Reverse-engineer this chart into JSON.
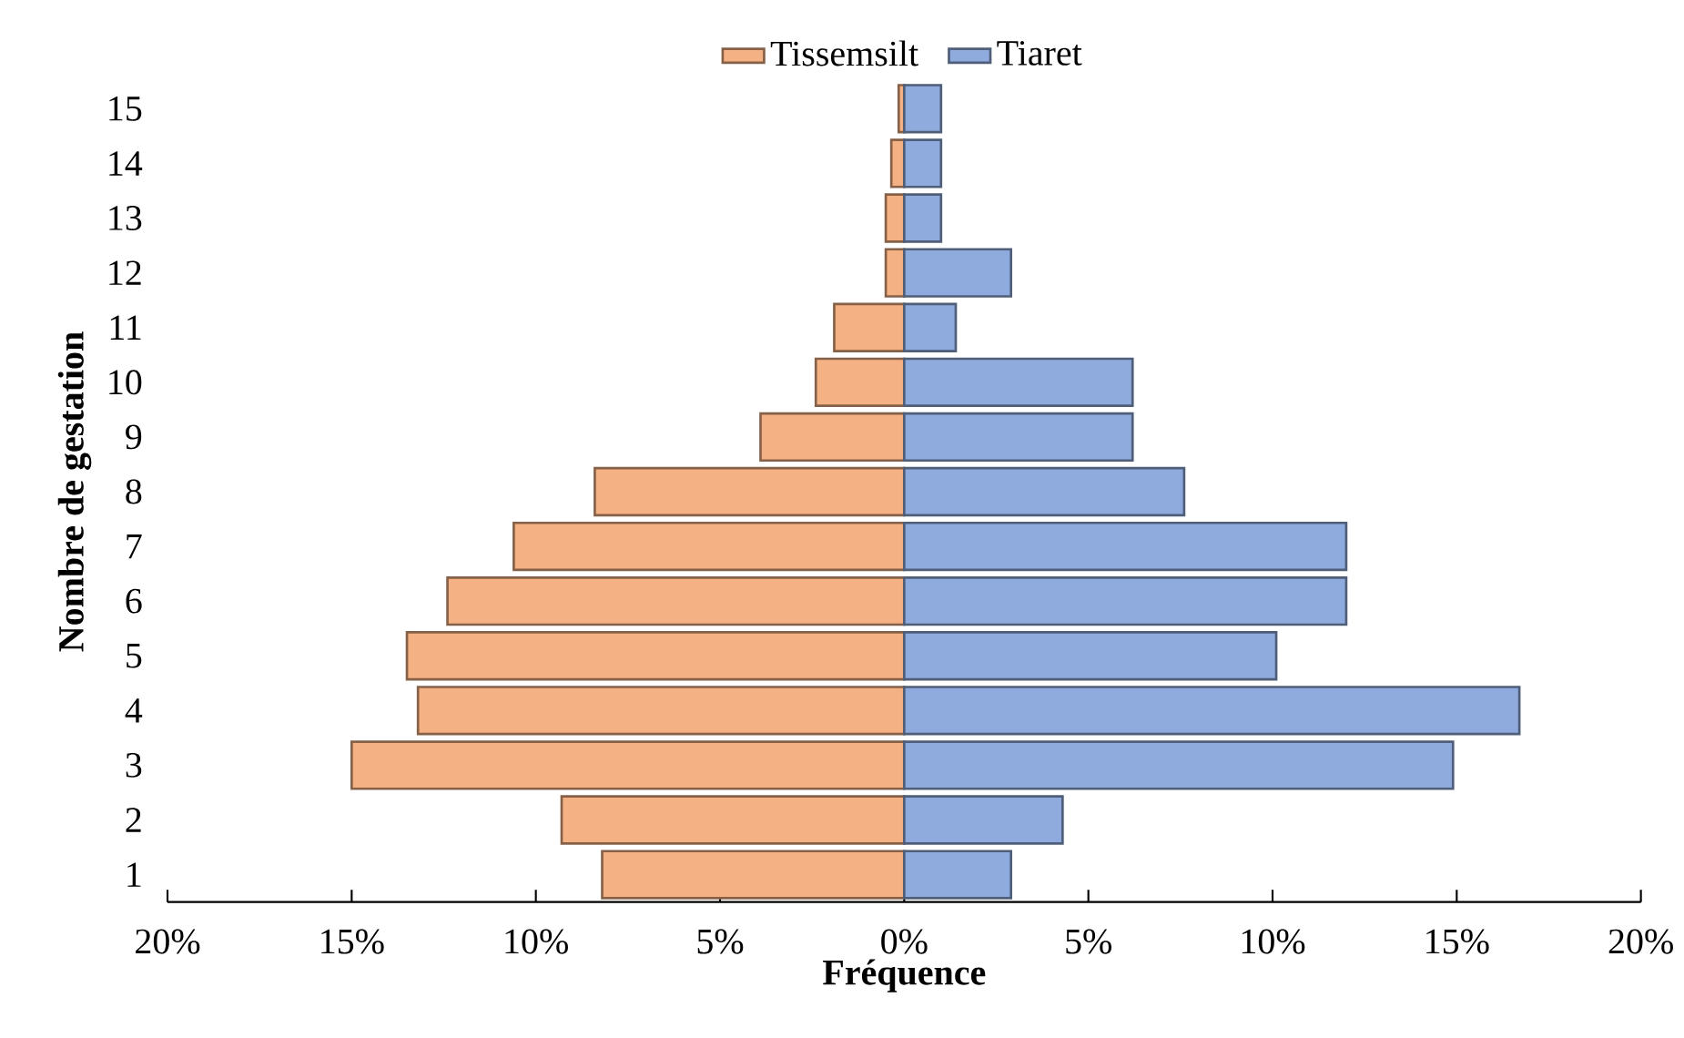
{
  "chart_data": {
    "type": "bar",
    "orientation": "horizontal",
    "xlabel": "Fréquence",
    "ylabel": "Nombre  de gestation",
    "categories": [
      "15",
      "14",
      "13",
      "12",
      "11",
      "10",
      "9",
      "8",
      "7",
      "6",
      "5",
      "4",
      "3",
      "2",
      "1"
    ],
    "series": [
      {
        "name": "Tissemsilt",
        "color": "#f4b183",
        "values": [
          -0.15,
          -0.35,
          -0.5,
          -0.5,
          -1.9,
          -2.4,
          -3.9,
          -8.4,
          -10.6,
          -12.4,
          -13.5,
          -13.2,
          -15.0,
          -9.3,
          -8.2
        ]
      },
      {
        "name": "Tiaret",
        "color": "#8faadc",
        "values": [
          1.0,
          1.0,
          1.0,
          2.9,
          1.4,
          6.2,
          6.2,
          7.6,
          12.0,
          12.0,
          10.1,
          16.7,
          14.9,
          4.3,
          2.9
        ]
      }
    ],
    "xlim": [
      -20,
      20
    ],
    "xticks": [
      {
        "value": -20,
        "label": "20%"
      },
      {
        "value": -15,
        "label": "15%"
      },
      {
        "value": -10,
        "label": "10%"
      },
      {
        "value": -5,
        "label": "5%"
      },
      {
        "value": 0,
        "label": "0%"
      },
      {
        "value": 5,
        "label": "5%"
      },
      {
        "value": 10,
        "label": "10%"
      },
      {
        "value": 15,
        "label": "15%"
      },
      {
        "value": 20,
        "label": "20%"
      }
    ],
    "legend": "top",
    "grid": false,
    "stacked": true
  }
}
